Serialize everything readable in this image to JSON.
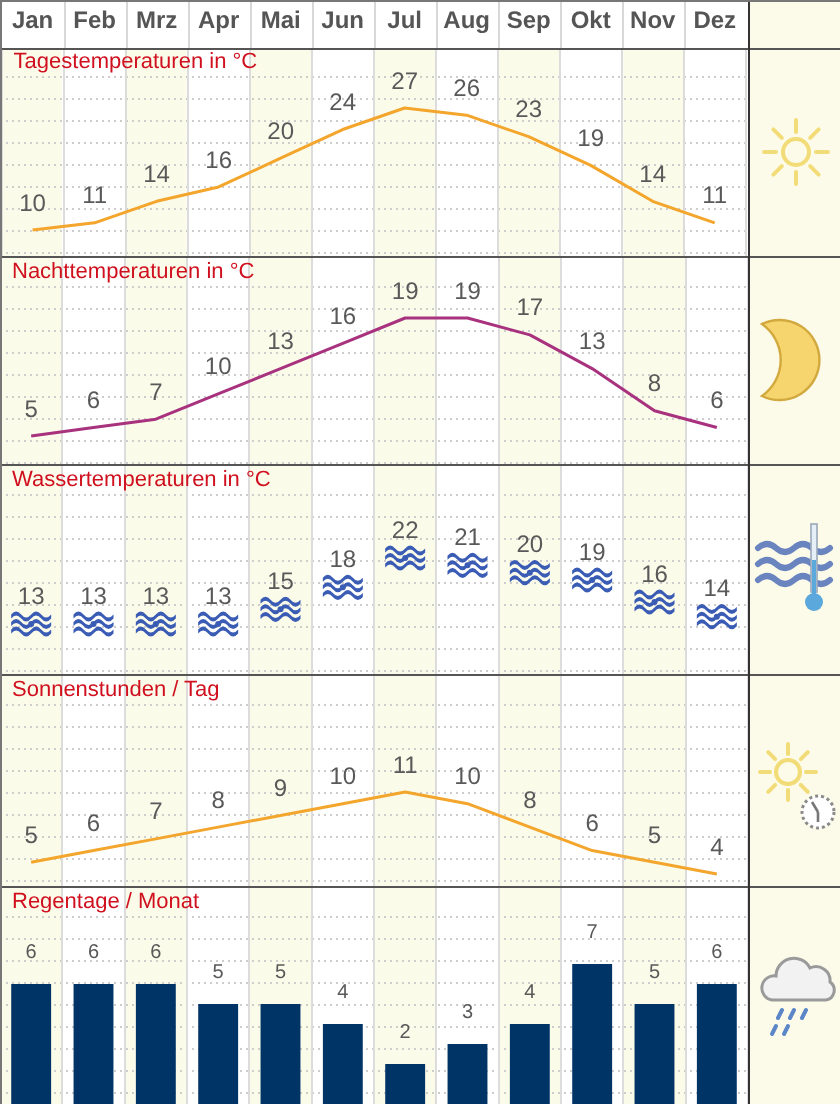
{
  "chart_data": [
    {
      "type": "line",
      "title": "Tagestemperaturen in °C",
      "categories": [
        "Jan",
        "Feb",
        "Mrz",
        "Apr",
        "Mai",
        "Jun",
        "Jul",
        "Aug",
        "Sep",
        "Okt",
        "Nov",
        "Dez"
      ],
      "values": [
        10,
        11,
        14,
        16,
        20,
        24,
        27,
        26,
        23,
        19,
        14,
        11
      ],
      "color": "#f3a52c",
      "grid": "x",
      "marker": "none",
      "data_labels": true,
      "tick_labels": "x"
    },
    {
      "type": "line",
      "title": "Nachttemperaturen in °C",
      "categories": [
        null,
        null,
        null,
        null,
        null,
        null,
        null,
        null,
        null,
        null,
        null,
        null
      ],
      "values": [
        5,
        6,
        7,
        10,
        13,
        16,
        19,
        19,
        17,
        13,
        8,
        6
      ],
      "color": "#a8327e",
      "grid": "x",
      "marker": "none",
      "data_labels": true,
      "tick_labels": false
    },
    {
      "type": "scatter",
      "title": "Wassertemperaturen in °C",
      "categories": [
        null,
        null,
        null,
        null,
        null,
        null,
        null,
        null,
        null,
        null,
        null,
        null
      ],
      "values": [
        13,
        13,
        13,
        13,
        15,
        18,
        22,
        21,
        20,
        19,
        16,
        14
      ],
      "color": "#3a5cb4",
      "grid": "x",
      "data_labels": true,
      "tick_labels": false
    },
    {
      "type": "line",
      "title": "Sonnenstunden / Tag",
      "categories": [
        null,
        null,
        null,
        null,
        null,
        null,
        null,
        null,
        null,
        null,
        null,
        null
      ],
      "values": [
        5,
        6,
        7,
        8,
        9,
        10,
        11,
        10,
        8,
        6,
        5,
        4
      ],
      "color": "#f3a52c",
      "grid": "x",
      "marker": "none",
      "data_labels": true,
      "tick_labels": false
    },
    {
      "type": "bar",
      "title": "Regentage / Monat",
      "categories": [
        null,
        null,
        null,
        null,
        null,
        null,
        null,
        null,
        null,
        null,
        null,
        null
      ],
      "values": [
        6,
        6,
        6,
        5,
        5,
        4,
        2,
        3,
        4,
        7,
        5,
        6
      ],
      "color": "#003366",
      "grid": "x",
      "data_labels": true,
      "tick_labels": false
    }
  ]
}
